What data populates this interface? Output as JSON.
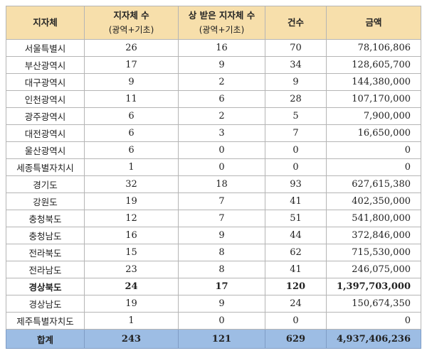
{
  "header": {
    "region": "지자체",
    "count": "지자체 수",
    "count_sub": "(광역+기초)",
    "awarded": "상 받은 지자체 수",
    "awarded_sub": "(광역+기초)",
    "cases": "건수",
    "amount": "금액"
  },
  "rows": [
    {
      "region": "서울특별시",
      "count": "26",
      "awarded": "16",
      "cases": "70",
      "amount": "78,106,806"
    },
    {
      "region": "부산광역시",
      "count": "17",
      "awarded": "9",
      "cases": "34",
      "amount": "128,605,700"
    },
    {
      "region": "대구광역시",
      "count": "9",
      "awarded": "2",
      "cases": "9",
      "amount": "144,380,000"
    },
    {
      "region": "인천광역시",
      "count": "11",
      "awarded": "6",
      "cases": "28",
      "amount": "107,170,000"
    },
    {
      "region": "광주광역시",
      "count": "6",
      "awarded": "2",
      "cases": "5",
      "amount": "7,900,000"
    },
    {
      "region": "대전광역시",
      "count": "6",
      "awarded": "3",
      "cases": "7",
      "amount": "16,650,000"
    },
    {
      "region": "울산광역시",
      "count": "6",
      "awarded": "0",
      "cases": "0",
      "amount": "0"
    },
    {
      "region": "세종특별자치시",
      "count": "1",
      "awarded": "0",
      "cases": "0",
      "amount": "0"
    },
    {
      "region": "경기도",
      "count": "32",
      "awarded": "18",
      "cases": "93",
      "amount": "627,615,380"
    },
    {
      "region": "강원도",
      "count": "19",
      "awarded": "7",
      "cases": "41",
      "amount": "402,350,000"
    },
    {
      "region": "충청북도",
      "count": "12",
      "awarded": "7",
      "cases": "51",
      "amount": "541,800,000"
    },
    {
      "region": "충청남도",
      "count": "16",
      "awarded": "9",
      "cases": "44",
      "amount": "372,846,000"
    },
    {
      "region": "전라북도",
      "count": "15",
      "awarded": "8",
      "cases": "62",
      "amount": "715,530,000"
    },
    {
      "region": "전라남도",
      "count": "23",
      "awarded": "8",
      "cases": "41",
      "amount": "246,075,000"
    },
    {
      "region": "경상북도",
      "count": "24",
      "awarded": "17",
      "cases": "120",
      "amount": "1,397,703,000",
      "bold": true
    },
    {
      "region": "경상남도",
      "count": "19",
      "awarded": "9",
      "cases": "24",
      "amount": "150,674,350"
    },
    {
      "region": "제주특별자치도",
      "count": "1",
      "awarded": "0",
      "cases": "0",
      "amount": "0"
    }
  ],
  "total": {
    "region": "합계",
    "count": "243",
    "awarded": "121",
    "cases": "629",
    "amount": "4,937,406,236"
  },
  "colors": {
    "header_bg": "#f7dfab",
    "total_bg": "#9dbde4"
  }
}
